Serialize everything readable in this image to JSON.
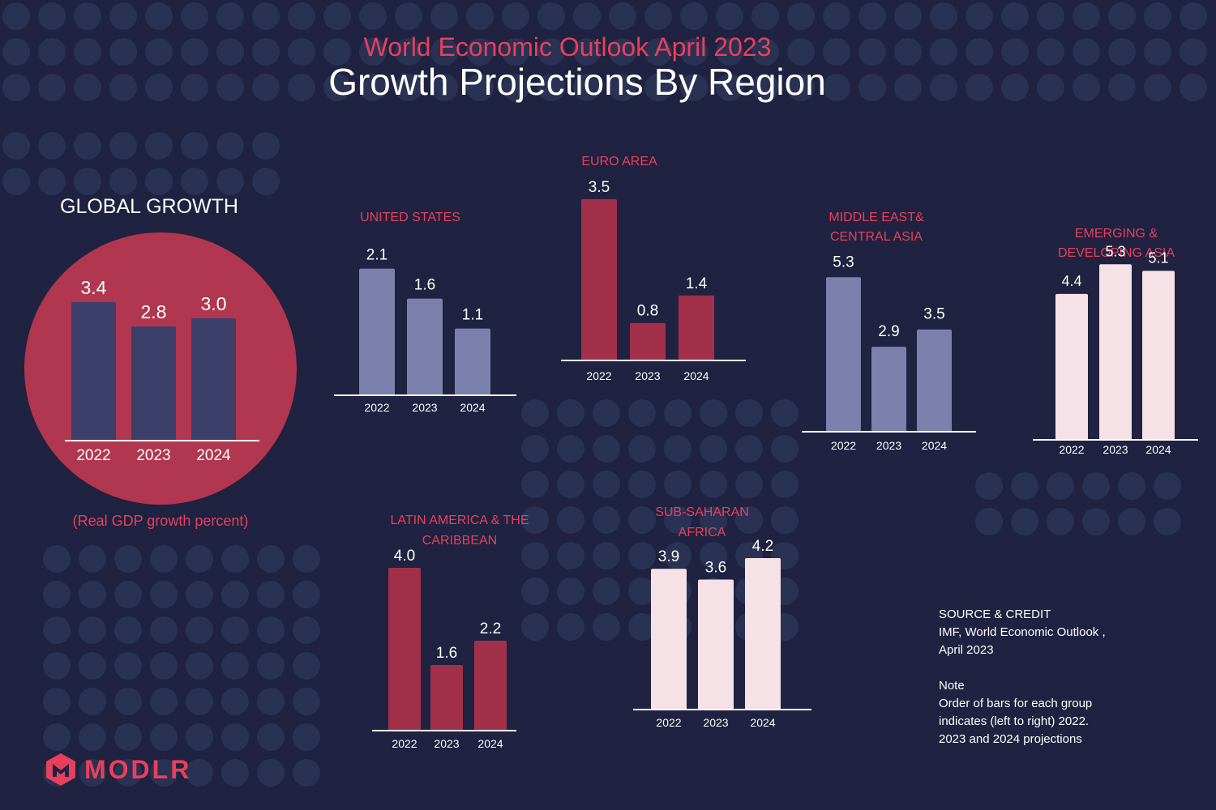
{
  "header": {
    "supertitle": "World Economic Outlook April 2023",
    "title": "Growth Projections By Region"
  },
  "global": {
    "title": "GLOBAL GROWTH",
    "note": "(Real GDP growth percent)"
  },
  "source": {
    "lines": [
      "SOURCE & CREDIT",
      "IMF, World Economic Outlook ,",
      "April 2023",
      "",
      "Note",
      "Order of bars for each group",
      "indicates (left to right) 2022.",
      "2023 and 2024 projections"
    ]
  },
  "logo": {
    "text": "MODLR"
  },
  "colors": {
    "background": "#1f2240",
    "dots": "#2a3254",
    "circle": "#b0374f",
    "navy_bar": "#3c3f6a",
    "lavender_bar": "#7b80ad",
    "crimson_bar": "#a2304a",
    "pink_bar": "#f5e1e6",
    "accent": "#e8405c"
  },
  "chart_data": [
    {
      "id": "global",
      "type": "bar",
      "title": "GLOBAL GROWTH",
      "categories": [
        "2022",
        "2023",
        "2024"
      ],
      "values": [
        3.4,
        2.8,
        3.0
      ],
      "labels": [
        "3.4",
        "2.8",
        "3.0"
      ],
      "color": "#3c3f6a",
      "ylabel": "Real GDP growth percent"
    },
    {
      "id": "united-states",
      "type": "bar",
      "title": [
        "UNITED STATES"
      ],
      "categories": [
        "2022",
        "2023",
        "2024"
      ],
      "values": [
        2.1,
        1.6,
        1.1
      ],
      "labels": [
        "2.1",
        "1.6",
        "1.1"
      ],
      "color": "#7b80ad"
    },
    {
      "id": "euro-area",
      "type": "bar",
      "title": [
        "EURO AREA"
      ],
      "categories": [
        "2022",
        "2023",
        "2024"
      ],
      "values": [
        3.5,
        0.8,
        1.4
      ],
      "labels": [
        "3.5",
        "0.8",
        "1.4"
      ],
      "color": "#a2304a"
    },
    {
      "id": "middle-east",
      "type": "bar",
      "title": [
        "MIDDLE EAST&",
        "CENTRAL ASIA"
      ],
      "categories": [
        "2022",
        "2023",
        "2024"
      ],
      "values": [
        5.3,
        2.9,
        3.5
      ],
      "labels": [
        "5.3",
        "2.9",
        "3.5"
      ],
      "color": "#7b80ad"
    },
    {
      "id": "emerging-asia",
      "type": "bar",
      "title": [
        "EMERGING &",
        "DEVELOPING ASIA"
      ],
      "categories": [
        "2022",
        "2023",
        "2024"
      ],
      "values": [
        4.4,
        5.3,
        5.1
      ],
      "labels": [
        "4.4",
        "5.3",
        "5.1"
      ],
      "color": "#f5e1e6"
    },
    {
      "id": "latin-america",
      "type": "bar",
      "title": [
        "LATIN AMERICA & THE",
        "CARIBBEAN"
      ],
      "categories": [
        "2022",
        "2023",
        "2024"
      ],
      "values": [
        4.0,
        1.6,
        2.2
      ],
      "labels": [
        "4.0",
        "1.6",
        "2.2"
      ],
      "color": "#a2304a"
    },
    {
      "id": "sub-saharan",
      "type": "bar",
      "title": [
        "SUB-SAHARAN",
        "AFRICA"
      ],
      "categories": [
        "2022",
        "2023",
        "2024"
      ],
      "values": [
        3.9,
        3.6,
        4.2
      ],
      "labels": [
        "3.9",
        "3.6",
        "4.2"
      ],
      "color": "#f5e1e6"
    }
  ]
}
